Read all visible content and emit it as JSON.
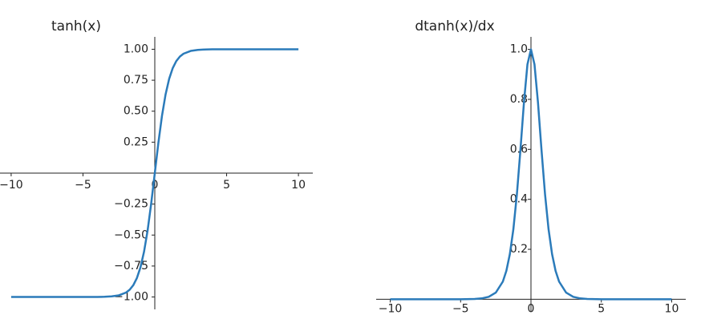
{
  "chart_data": [
    {
      "type": "line",
      "title": "tanh(x)",
      "color": "#2b7bba",
      "x": [
        -10,
        -9,
        -8,
        -7,
        -6,
        -5,
        -4,
        -3.5,
        -3,
        -2.5,
        -2,
        -1.75,
        -1.5,
        -1.25,
        -1,
        -0.75,
        -0.5,
        -0.25,
        0,
        0.25,
        0.5,
        0.75,
        1,
        1.25,
        1.5,
        1.75,
        2,
        2.5,
        3,
        3.5,
        4,
        5,
        6,
        7,
        8,
        9,
        10
      ],
      "values": [
        -1,
        -1,
        -1,
        -1,
        -1,
        -0.9999,
        -0.9993,
        -0.9982,
        -0.9951,
        -0.9866,
        -0.964,
        -0.9414,
        -0.9051,
        -0.8483,
        -0.7616,
        -0.6351,
        -0.4621,
        -0.2449,
        0,
        0.2449,
        0.4621,
        0.6351,
        0.7616,
        0.8483,
        0.9051,
        0.9414,
        0.964,
        0.9866,
        0.9951,
        0.9982,
        0.9993,
        0.9999,
        1,
        1,
        1,
        1,
        1
      ],
      "xlim": [
        -11,
        11
      ],
      "ylim": [
        -1.1,
        1.1
      ],
      "xticks": [
        {
          "value": -10,
          "label": "−10"
        },
        {
          "value": -5,
          "label": "−5"
        },
        0,
        5,
        10
      ],
      "yticks": [
        {
          "value": -1,
          "label": "−1.00"
        },
        {
          "value": -0.75,
          "label": "−0.75"
        },
        {
          "value": -0.5,
          "label": "−0.50"
        },
        {
          "value": -0.25,
          "label": "−0.25"
        },
        {
          "value": 0.25,
          "label": "0.25"
        },
        {
          "value": 0.5,
          "label": "0.50"
        },
        {
          "value": 0.75,
          "label": "0.75"
        },
        {
          "value": 1,
          "label": "1.00"
        }
      ]
    },
    {
      "type": "line",
      "title": "dtanh(x)/dx",
      "color": "#2b7bba",
      "x": [
        -10,
        -9,
        -8,
        -7,
        -6,
        -5,
        -4,
        -3.5,
        -3,
        -2.5,
        -2,
        -1.75,
        -1.5,
        -1.25,
        -1,
        -0.75,
        -0.5,
        -0.25,
        0,
        0.25,
        0.5,
        0.75,
        1,
        1.25,
        1.5,
        1.75,
        2,
        2.5,
        3,
        3.5,
        4,
        5,
        6,
        7,
        8,
        9,
        10
      ],
      "values": [
        0,
        0,
        0,
        0,
        0,
        0.0002,
        0.0013,
        0.0036,
        0.0099,
        0.0266,
        0.0707,
        0.1137,
        0.1807,
        0.2804,
        0.42,
        0.5966,
        0.7864,
        0.94,
        1,
        0.94,
        0.7864,
        0.5966,
        0.42,
        0.2804,
        0.1807,
        0.1137,
        0.0707,
        0.0266,
        0.0099,
        0.0036,
        0.0013,
        0.0002,
        0,
        0,
        0,
        0,
        0
      ],
      "xlim": [
        -11,
        11
      ],
      "ylim": [
        -0.05,
        1.05
      ],
      "xticks": [
        {
          "value": -10,
          "label": "−10"
        },
        {
          "value": -5,
          "label": "−5"
        },
        0,
        5,
        10
      ],
      "yticks": [
        0.2,
        0.4,
        0.6,
        0.8,
        {
          "value": 1,
          "label": "1.0"
        }
      ]
    }
  ]
}
